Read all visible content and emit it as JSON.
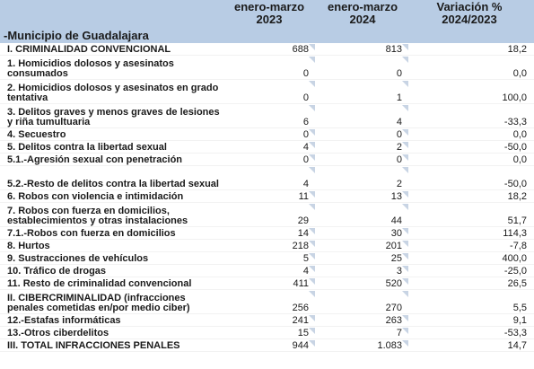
{
  "header": {
    "col1": [
      "enero-marzo",
      "2023"
    ],
    "col2": [
      "enero-marzo",
      "2024"
    ],
    "col3": [
      "Variación %",
      "2024/2023"
    ]
  },
  "municipality": "-Municipio de Guadalajara",
  "rows": [
    {
      "label": "I. CRIMINALIDAD CONVENCIONAL",
      "v2023": "688",
      "v2024": "813",
      "var": "18,2"
    },
    {
      "label": "1. Homicidios dolosos y asesinatos consumados",
      "v2023": "0",
      "v2024": "0",
      "var": "0,0"
    },
    {
      "label": "2. Homicidios dolosos y asesinatos en grado tentativa",
      "v2023": "0",
      "v2024": "1",
      "var": "100,0"
    },
    {
      "label": "3. Delitos graves y menos graves de lesiones y riña tumultuaria",
      "v2023": "6",
      "v2024": "4",
      "var": "-33,3"
    },
    {
      "label": "4. Secuestro",
      "v2023": "0",
      "v2024": "0",
      "var": "0,0"
    },
    {
      "label": "5. Delitos contra la libertad sexual",
      "v2023": "4",
      "v2024": "2",
      "var": "-50,0"
    },
    {
      "label": "5.1.-Agresión sexual con penetración",
      "v2023": "0",
      "v2024": "0",
      "var": "0,0"
    },
    {
      "label": "5.2.-Resto de delitos contra la libertad sexual",
      "v2023": "4",
      "v2024": "2",
      "var": "-50,0"
    },
    {
      "label": "6. Robos con violencia e intimidación",
      "v2023": "11",
      "v2024": "13",
      "var": "18,2"
    },
    {
      "label": "7. Robos con fuerza en domicilios, establecimientos y otras instalaciones",
      "v2023": "29",
      "v2024": "44",
      "var": "51,7"
    },
    {
      "label": "7.1.-Robos con fuerza en domicilios",
      "v2023": "14",
      "v2024": "30",
      "var": "114,3"
    },
    {
      "label": "8. Hurtos",
      "v2023": "218",
      "v2024": "201",
      "var": "-7,8"
    },
    {
      "label": "9. Sustracciones de vehículos",
      "v2023": "5",
      "v2024": "25",
      "var": "400,0"
    },
    {
      "label": "10. Tráfico de drogas",
      "v2023": "4",
      "v2024": "3",
      "var": "-25,0"
    },
    {
      "label": "11. Resto de criminalidad convencional",
      "v2023": "411",
      "v2024": "520",
      "var": "26,5"
    },
    {
      "label": "II. CIBERCRIMINALIDAD (infracciones penales cometidas en/por medio ciber)",
      "v2023": "256",
      "v2024": "270",
      "var": "5,5"
    },
    {
      "label": "12.-Estafas informáticas",
      "v2023": "241",
      "v2024": "263",
      "var": "9,1"
    },
    {
      "label": "13.-Otros ciberdelitos",
      "v2023": "15",
      "v2024": "7",
      "var": "-53,3"
    },
    {
      "label": "III. TOTAL INFRACCIONES PENALES",
      "v2023": "944",
      "v2024": "1.083",
      "var": "14,7"
    }
  ]
}
